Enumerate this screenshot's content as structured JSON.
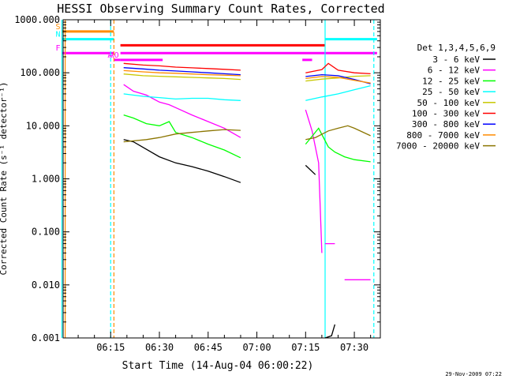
{
  "chart_data": {
    "type": "line",
    "title": "HESSI Observing Summary Count Rates, Corrected",
    "xlabel": "Start Time (14-Aug-04 06:00:22)",
    "ylabel": "Corrected Count Rate (s⁻¹ detector⁻¹)",
    "y_scale": "log",
    "ylim": [
      0.001,
      1000
    ],
    "xlim": [
      "06:00:22",
      "07:38"
    ],
    "x_ticks": [
      "06:15",
      "06:30",
      "06:45",
      "07:00",
      "07:15",
      "07:30"
    ],
    "y_ticks": [
      "0.001",
      "0.010",
      "0.100",
      "1.000",
      "10.000",
      "100.000",
      "1000.000"
    ],
    "legend_title": "Det 1,3,4,5,6,9",
    "legend_position": "right",
    "timestamp": "29-Nov-2009 07:22",
    "series": [
      {
        "name": "3 - 6 keV",
        "color": "#000000",
        "segments": [
          {
            "x": [
              "06:19",
              "06:22",
              "06:26",
              "06:30",
              "06:35",
              "06:40",
              "06:45",
              "06:50",
              "06:55"
            ],
            "y": [
              5.5,
              5,
              3.6,
              2.6,
              2,
              1.7,
              1.4,
              1.1,
              0.85
            ]
          },
          {
            "x": [
              "07:15",
              "07:18"
            ],
            "y": [
              1.8,
              1.2
            ]
          },
          {
            "x": [
              "07:21",
              "07:23",
              "07:24"
            ],
            "y": [
              0.001,
              0.0011,
              0.0018
            ]
          }
        ]
      },
      {
        "name": "6 - 12 keV",
        "color": "#ff00ff",
        "segments": [
          {
            "x": [
              "06:19",
              "06:22",
              "06:26",
              "06:30",
              "06:33",
              "06:35",
              "06:40",
              "06:45",
              "06:50",
              "06:55"
            ],
            "y": [
              60,
              45,
              38,
              28,
              25,
              22,
              16,
              12,
              9,
              6
            ]
          },
          {
            "x": [
              "07:15",
              "07:17",
              "07:19",
              "07:20"
            ],
            "y": [
              20,
              8,
              2,
              0.04
            ]
          },
          {
            "x": [
              "07:21",
              "07:24"
            ],
            "y": [
              0.06,
              0.06
            ]
          },
          {
            "x": [
              "07:27",
              "07:35"
            ],
            "y": [
              0.0125,
              0.0125
            ]
          }
        ]
      },
      {
        "name": "12 - 25 keV",
        "color": "#00ff00",
        "segments": [
          {
            "x": [
              "06:19",
              "06:22",
              "06:26",
              "06:30",
              "06:33",
              "06:35",
              "06:40",
              "06:45",
              "06:50",
              "06:55"
            ],
            "y": [
              16,
              14,
              11,
              10,
              12,
              7.5,
              6,
              4.5,
              3.5,
              2.5
            ]
          },
          {
            "x": [
              "07:15",
              "07:19",
              "07:22",
              "07:24",
              "07:27",
              "07:30",
              "07:35"
            ],
            "y": [
              4.5,
              9,
              4,
              3.2,
              2.6,
              2.3,
              2.1
            ]
          }
        ]
      },
      {
        "name": "25 - 50 keV",
        "color": "#00ffff",
        "segments": [
          {
            "x": [
              "06:19",
              "06:25",
              "06:30",
              "06:35",
              "06:40",
              "06:45",
              "06:50",
              "06:55"
            ],
            "y": [
              40,
              36,
              34,
              32,
              33,
              33,
              31,
              30
            ]
          },
          {
            "x": [
              "07:15",
              "07:20",
              "07:25",
              "07:30",
              "07:35"
            ],
            "y": [
              30,
              35,
              40,
              48,
              57
            ]
          }
        ]
      },
      {
        "name": "50 - 100 keV",
        "color": "#c8c800",
        "segments": [
          {
            "x": [
              "06:19",
              "06:25",
              "06:30",
              "06:35",
              "06:40",
              "06:45",
              "06:50",
              "06:55"
            ],
            "y": [
              95,
              88,
              86,
              84,
              82,
              80,
              78,
              75
            ]
          },
          {
            "x": [
              "07:15",
              "07:20",
              "07:25",
              "07:30",
              "07:35"
            ],
            "y": [
              70,
              76,
              80,
              86,
              88
            ]
          }
        ]
      },
      {
        "name": "100 - 300 keV",
        "color": "#ff0000",
        "segments": [
          {
            "x": [
              "06:19",
              "06:25",
              "06:30",
              "06:35",
              "06:40",
              "06:45",
              "06:50",
              "06:55"
            ],
            "y": [
              150,
              140,
              135,
              128,
              124,
              120,
              116,
              112
            ]
          },
          {
            "x": [
              "07:15",
              "07:20",
              "07:22",
              "07:25",
              "07:30",
              "07:35"
            ],
            "y": [
              100,
              115,
              150,
              112,
              100,
              96
            ]
          }
        ]
      },
      {
        "name": "300 - 800 keV",
        "color": "#0000ff",
        "segments": [
          {
            "x": [
              "06:19",
              "06:25",
              "06:30",
              "06:35",
              "06:40",
              "06:45",
              "06:50",
              "06:55"
            ],
            "y": [
              125,
              118,
              112,
              108,
              104,
              100,
              96,
              92
            ]
          },
          {
            "x": [
              "07:15",
              "07:20",
              "07:25",
              "07:30",
              "07:35"
            ],
            "y": [
              85,
              92,
              88,
              75,
              62
            ]
          }
        ]
      },
      {
        "name": "800 - 7000 keV",
        "color": "#ff8c00",
        "segments": [
          {
            "x": [
              "06:19",
              "06:25",
              "06:30",
              "06:35",
              "06:40",
              "06:45",
              "06:50",
              "06:55"
            ],
            "y": [
              110,
              104,
              100,
              98,
              95,
              92,
              90,
              88
            ]
          },
          {
            "x": [
              "07:15",
              "07:20",
              "07:25",
              "07:30",
              "07:35"
            ],
            "y": [
              78,
              85,
              82,
              72,
              64
            ]
          }
        ]
      },
      {
        "name": "7000 - 20000 keV",
        "color": "#8b7500",
        "segments": [
          {
            "x": [
              "06:19",
              "06:22",
              "06:26",
              "06:30",
              "06:35",
              "06:40",
              "06:45",
              "06:50",
              "06:55"
            ],
            "y": [
              5,
              5.2,
              5.5,
              6,
              7,
              7.5,
              8,
              8.5,
              8.2
            ]
          },
          {
            "x": [
              "07:15",
              "07:18",
              "07:22",
              "07:25",
              "07:28",
              "07:30",
              "07:35"
            ],
            "y": [
              5.5,
              6,
              8,
              9,
              10,
              9,
              6.5
            ]
          }
        ]
      }
    ],
    "flags": [
      {
        "label": "S",
        "color": "#ff8c00",
        "x0": "06:00",
        "x1": "06:16",
        "level": 600
      },
      {
        "label": "N",
        "color": "#00ffff",
        "x0": "06:00",
        "x1": "06:16",
        "level": 430
      },
      {
        "label": "F",
        "color": "#ff00ff",
        "x0": "06:00",
        "x1": "06:16",
        "level": 235
      },
      {
        "label": "A",
        "color": "#ff00ff",
        "x0": "06:16",
        "x1": "06:18",
        "level": 175
      },
      {
        "label": "AO",
        "color": "#ff00ff",
        "x0": "06:18",
        "x1": "06:31",
        "level": 175
      },
      {
        "label": "",
        "color": "#ff00ff",
        "x0": "07:14",
        "x1": "07:17",
        "level": 175
      },
      {
        "label": "",
        "color": "#ff0000",
        "x0": "06:18",
        "x1": "07:21",
        "level": 330
      },
      {
        "label": "",
        "color": "#00ffff",
        "x0": "07:21",
        "x1": "07:37",
        "level": 430
      },
      {
        "label": "",
        "color": "#ff00ff",
        "x0": "06:18",
        "x1": "07:37",
        "level": 235
      }
    ],
    "vertical_markers": [
      {
        "time": "06:15",
        "color": "#00ffff",
        "style": "dashed"
      },
      {
        "time": "06:16",
        "color": "#ff8c00",
        "style": "dashed"
      },
      {
        "time": "07:21",
        "color": "#00ffff",
        "style": "solid"
      },
      {
        "time": "07:36",
        "color": "#00ffff",
        "style": "dashed"
      },
      {
        "time": "06:00",
        "color": "#00ffff",
        "style": "solid"
      },
      {
        "time": "06:01",
        "color": "#ff8c00",
        "style": "solid"
      }
    ]
  }
}
